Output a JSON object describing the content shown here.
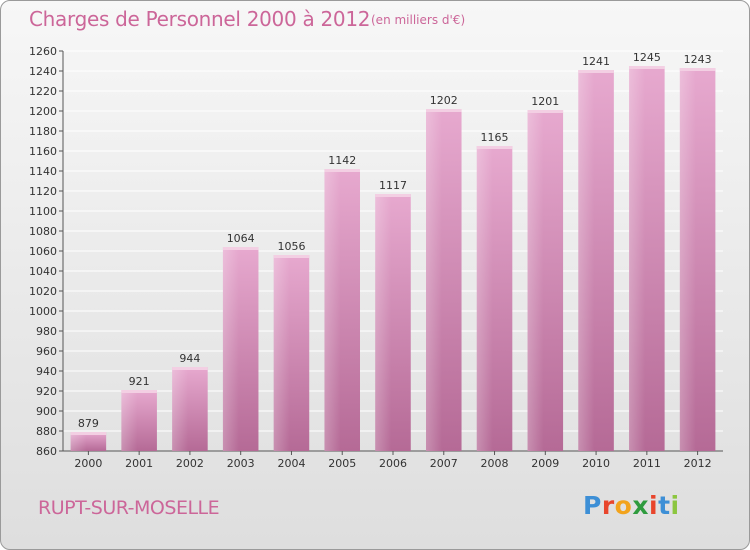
{
  "header": {
    "title": "Charges de Personnel 2000 à 2012",
    "unit": "(en milliers d'€)"
  },
  "footer": {
    "city": "RUPT-SUR-MOSELLE",
    "logo": "Proxiti",
    "logo_colors": [
      "#3d8fd6",
      "#e8452c",
      "#f2a31c",
      "#2e9b3e",
      "#e8452c",
      "#3d8fd6",
      "#8cc63f"
    ]
  },
  "colors": {
    "bar": "#cc6699",
    "title": "#cc6699",
    "grid": "#ffffff"
  },
  "chart_data": {
    "type": "bar",
    "title": "Charges de Personnel 2000 à 2012",
    "subtitle": "(en milliers d'€)",
    "xlabel": "",
    "ylabel": "",
    "categories": [
      "2000",
      "2001",
      "2002",
      "2003",
      "2004",
      "2005",
      "2006",
      "2007",
      "2008",
      "2009",
      "2010",
      "2011",
      "2012"
    ],
    "values": [
      879,
      921,
      944,
      1064,
      1056,
      1142,
      1117,
      1202,
      1165,
      1201,
      1241,
      1245,
      1243
    ],
    "ylim": [
      860,
      1260
    ],
    "ytick_step": 20,
    "grid": true,
    "legend": "none"
  }
}
